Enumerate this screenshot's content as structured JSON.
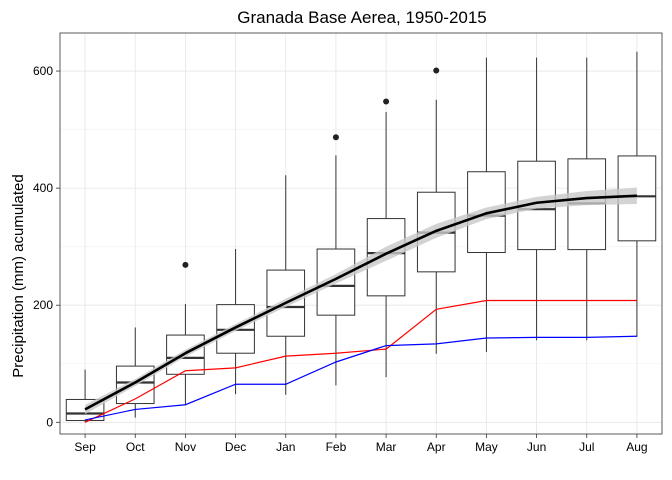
{
  "chart_data": {
    "type": "box",
    "title": "Granada Base Aerea, 1950-2015",
    "xlabel": "",
    "ylabel": "Precipitation (mm) acumulated",
    "categories": [
      "Sep",
      "Oct",
      "Nov",
      "Dec",
      "Jan",
      "Feb",
      "Mar",
      "Apr",
      "May",
      "Jun",
      "Jul",
      "Aug"
    ],
    "ylim": [
      -20,
      665
    ],
    "yticks": [
      0,
      200,
      400,
      600
    ],
    "grid": true,
    "legend": "none",
    "boxes": [
      {
        "category": "Sep",
        "min": 0,
        "q1": 3,
        "median": 15,
        "q3": 39,
        "max": 90,
        "outliers": []
      },
      {
        "category": "Oct",
        "min": 8,
        "q1": 32,
        "median": 68,
        "q3": 96,
        "max": 162,
        "outliers": []
      },
      {
        "category": "Nov",
        "min": 30,
        "q1": 82,
        "median": 110,
        "q3": 149,
        "max": 202,
        "outliers": [
          269
        ]
      },
      {
        "category": "Dec",
        "min": 48,
        "q1": 118,
        "median": 158,
        "q3": 201,
        "max": 296,
        "outliers": []
      },
      {
        "category": "Jan",
        "min": 47,
        "q1": 147,
        "median": 197,
        "q3": 260,
        "max": 422,
        "outliers": []
      },
      {
        "category": "Feb",
        "min": 63,
        "q1": 183,
        "median": 233,
        "q3": 296,
        "max": 456,
        "outliers": [
          487
        ]
      },
      {
        "category": "Mar",
        "min": 77,
        "q1": 216,
        "median": 289,
        "q3": 348,
        "max": 530,
        "outliers": [
          548
        ]
      },
      {
        "category": "Apr",
        "min": 117,
        "q1": 257,
        "median": 324,
        "q3": 393,
        "max": 551,
        "outliers": [
          601
        ]
      },
      {
        "category": "May",
        "min": 120,
        "q1": 290,
        "median": 353,
        "q3": 428,
        "max": 623,
        "outliers": []
      },
      {
        "category": "Jun",
        "min": 140,
        "q1": 295,
        "median": 364,
        "q3": 446,
        "max": 623,
        "outliers": []
      },
      {
        "category": "Jul",
        "min": 140,
        "q1": 295,
        "median": 374,
        "q3": 450,
        "max": 623,
        "outliers": []
      },
      {
        "category": "Aug",
        "min": 146,
        "q1": 310,
        "median": 386,
        "q3": 455,
        "max": 633,
        "outliers": []
      }
    ],
    "series": [
      {
        "color": "#ff0000",
        "values": [
          0,
          40,
          88,
          93,
          113,
          118,
          125,
          193,
          208,
          208,
          208,
          208
        ]
      },
      {
        "color": "#0000ff",
        "values": [
          4,
          22,
          30,
          65,
          65,
          103,
          131,
          134,
          144,
          145,
          145,
          147
        ]
      }
    ],
    "smooth": {
      "color": "#000000",
      "band_color": "#c8c8c8",
      "values": [
        22,
        68,
        118,
        162,
        204,
        245,
        288,
        327,
        357,
        375,
        383,
        387
      ],
      "band_halfwidth": [
        8,
        6,
        6,
        6,
        7,
        8,
        12,
        12,
        10,
        10,
        12,
        14
      ]
    }
  }
}
